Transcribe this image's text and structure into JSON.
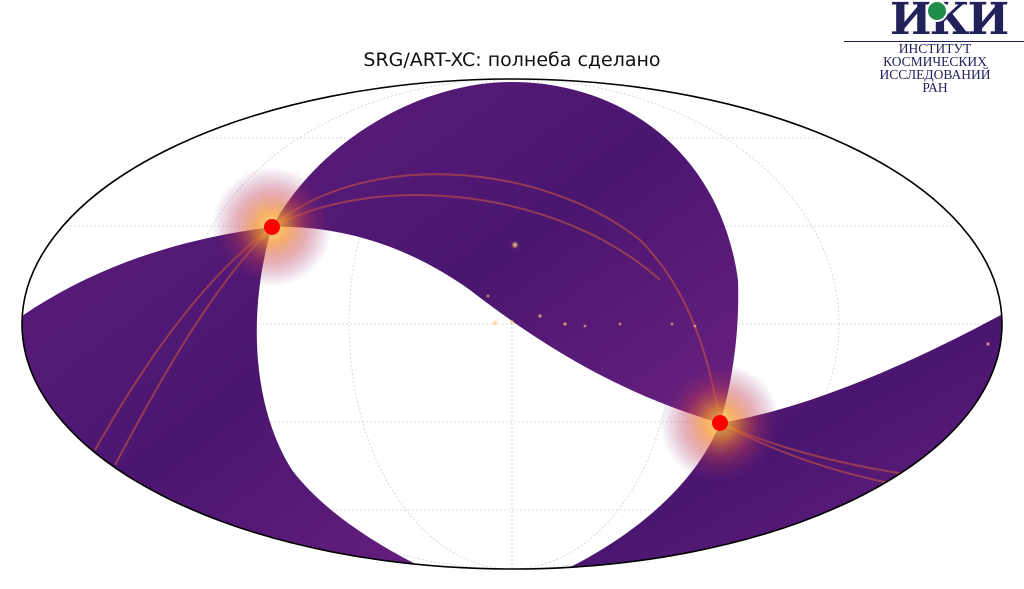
{
  "title": "SRG/ART-XC: полнеба сделано",
  "logo": {
    "wordmark": "ИКИ",
    "lines": [
      "ИНСТИТУТ",
      "КОСМИЧЕСКИХ",
      "ИССЛЕДОВАНИЙ",
      "РАН"
    ],
    "brand_color": "#22225a",
    "accent_color": "#1e8e4a"
  },
  "sky_map": {
    "projection": "mollweide",
    "colormap": "inferno",
    "grid": true,
    "markers": [
      "ecliptic-pole-north",
      "ecliptic-pole-south"
    ],
    "marker_color": "#ff0000"
  }
}
